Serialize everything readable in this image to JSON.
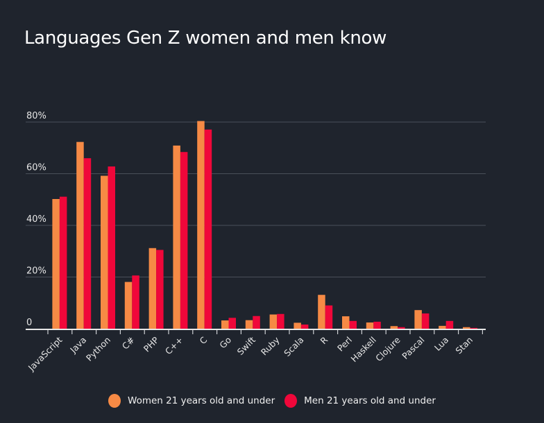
{
  "chart_data": {
    "type": "bar",
    "title": "Languages Gen Z women and men know",
    "xlabel": "",
    "ylabel": "",
    "ylim": [
      0,
      80
    ],
    "yticks": [
      0,
      20,
      40,
      60,
      80
    ],
    "ytick_labels": [
      "0",
      "20%",
      "40%",
      "60%",
      "80%"
    ],
    "grid": true,
    "legend_position": "bottom",
    "categories": [
      "JavaScript",
      "Java",
      "Python",
      "C#",
      "PHP",
      "C++",
      "C",
      "Go",
      "Swift",
      "Ruby",
      "Scala",
      "R",
      "Perl",
      "Haskell",
      "Clojure",
      "Pascal",
      "Lua",
      "Stan"
    ],
    "series": [
      {
        "name": "Women 21 years old and under",
        "color": "#f68a45",
        "values": [
          50.2,
          72.3,
          59.2,
          18.1,
          31.2,
          70.9,
          80.4,
          3.2,
          3.3,
          5.5,
          2.3,
          13.1,
          4.8,
          2.4,
          1.0,
          7.2,
          1.1,
          0.6
        ]
      },
      {
        "name": "Men 21 years old and under",
        "color": "#f0073a",
        "values": [
          51.1,
          66.0,
          62.8,
          20.6,
          30.5,
          68.4,
          77.1,
          4.2,
          4.9,
          5.7,
          1.6,
          9.0,
          3.0,
          2.7,
          0.6,
          5.9,
          3.0,
          0.3
        ]
      }
    ]
  }
}
